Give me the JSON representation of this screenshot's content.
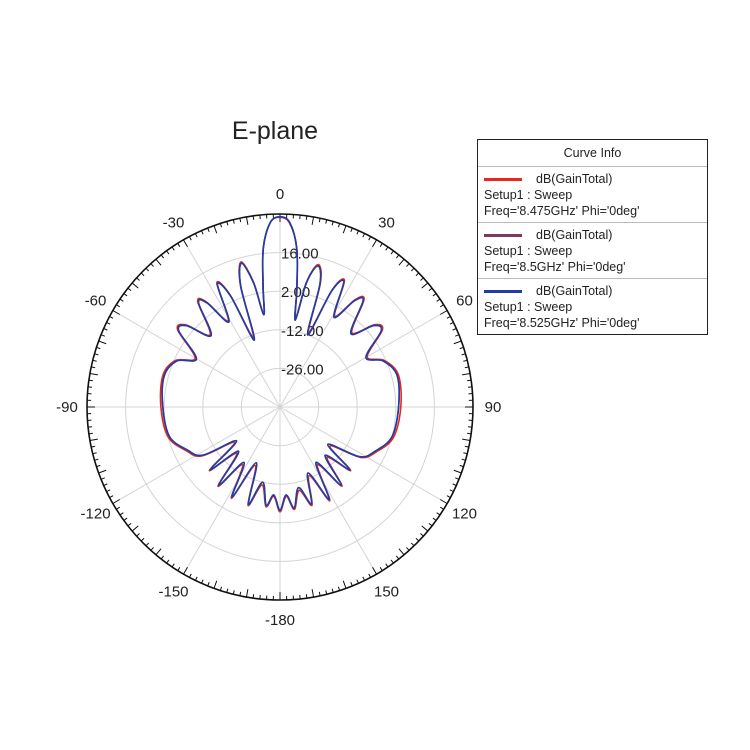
{
  "chart_data": {
    "type": "polar",
    "title": "E-plane",
    "radial_ticks": [
      16,
      2,
      -12,
      -26
    ],
    "radial_range": [
      -40,
      30
    ],
    "angle_ticks": [
      0,
      30,
      60,
      90,
      120,
      150,
      -180,
      -150,
      -120,
      -90,
      -60,
      -30
    ],
    "grid": true,
    "legend_placement": "right",
    "legend_title": "Curve Info",
    "angles": [
      0,
      3,
      6,
      8,
      10,
      12,
      15,
      18,
      21,
      24,
      27,
      31,
      35,
      38,
      44,
      49,
      53,
      60,
      66,
      75,
      90,
      105,
      115,
      122,
      128,
      132,
      137,
      142,
      147,
      152,
      157,
      162,
      167,
      172,
      176,
      180,
      -176,
      -172,
      -167,
      -162,
      -157,
      -152,
      -147,
      -142,
      -137,
      -132,
      -128,
      -122,
      -115,
      -105,
      -90,
      -75,
      -66,
      -60,
      -53,
      -49,
      -44,
      -38,
      -35,
      -31,
      -27,
      -24,
      -21,
      -18,
      -15,
      -12,
      -10,
      -8,
      -6,
      -3
    ],
    "series": [
      {
        "name": "dB(GainTotal)",
        "setup": "Setup1 : Sweep",
        "params": "Freq='8.475GHz' Phi='0deg'",
        "color": "#e8281c",
        "values": [
          28.8,
          26.8,
          18,
          4.5,
          -7,
          6.5,
          13.5,
          7.5,
          -11,
          6.5,
          11.5,
          -1.5,
          7.5,
          9.5,
          -2.5,
          5.5,
          6.5,
          -3.5,
          1.5,
          4.5,
          3.8,
          2.6,
          -1.5,
          -5.5,
          -17,
          -5.5,
          -15,
          -3.5,
          -15,
          -1.5,
          -13,
          -2.5,
          -9,
          -2.5,
          -7.5,
          -2,
          -7.5,
          -3.5,
          -11,
          -2.5,
          -17,
          -2.5,
          -15,
          -3.5,
          -17,
          -5.5,
          -19,
          -6.5,
          -2.5,
          2,
          3.2,
          4,
          1.5,
          -4.5,
          6.5,
          5.5,
          -3.5,
          8.5,
          6.5,
          -3.5,
          10.5,
          4.5,
          -13,
          6.5,
          14.5,
          6.5,
          -5.5,
          4.5,
          18,
          27
        ]
      },
      {
        "name": "dB(GainTotal)",
        "setup": "Setup1 : Sweep",
        "params": "Freq='8.5GHz' Phi='0deg'",
        "color": "#7b3a60",
        "values": [
          29,
          27,
          18,
          4,
          -8,
          6,
          13,
          7,
          -12,
          6,
          11,
          -2,
          7,
          9,
          -3,
          5,
          6,
          -4,
          1,
          4,
          3,
          2,
          -2,
          -6,
          -18,
          -6,
          -16,
          -4,
          -16,
          -2,
          -14,
          -3,
          -10,
          -3,
          -8,
          -2.5,
          -8,
          -4,
          -12,
          -3,
          -18,
          -3,
          -16,
          -4,
          -18,
          -6,
          -20,
          -7,
          -3,
          1.5,
          2.5,
          3.5,
          1,
          -5,
          6,
          5,
          -4,
          8,
          6,
          -4,
          10,
          4,
          -14,
          6,
          14,
          6,
          -6,
          4,
          18,
          27
        ]
      },
      {
        "name": "dB(GainTotal)",
        "setup": "Setup1 : Sweep",
        "params": "Freq='8.525GHz' Phi='0deg'",
        "color": "#1f3ea8",
        "values": [
          29,
          27,
          18,
          4,
          -8,
          6,
          13,
          7,
          -12,
          6,
          11,
          -2,
          7,
          9,
          -3,
          5,
          6,
          -4,
          1,
          4,
          3,
          2,
          -2,
          -6,
          -18,
          -6,
          -16,
          -4,
          -16,
          -2,
          -14,
          -3,
          -10,
          -3,
          -8,
          -2.5,
          -8,
          -4,
          -12,
          -3,
          -18,
          -3,
          -16,
          -4,
          -18,
          -6,
          -20,
          -7,
          -3,
          1.5,
          2.5,
          3.5,
          1,
          -5,
          6,
          5,
          -4,
          8,
          6,
          -4,
          10,
          4,
          -14,
          6,
          14,
          6,
          -6,
          4,
          18,
          27
        ]
      }
    ]
  }
}
